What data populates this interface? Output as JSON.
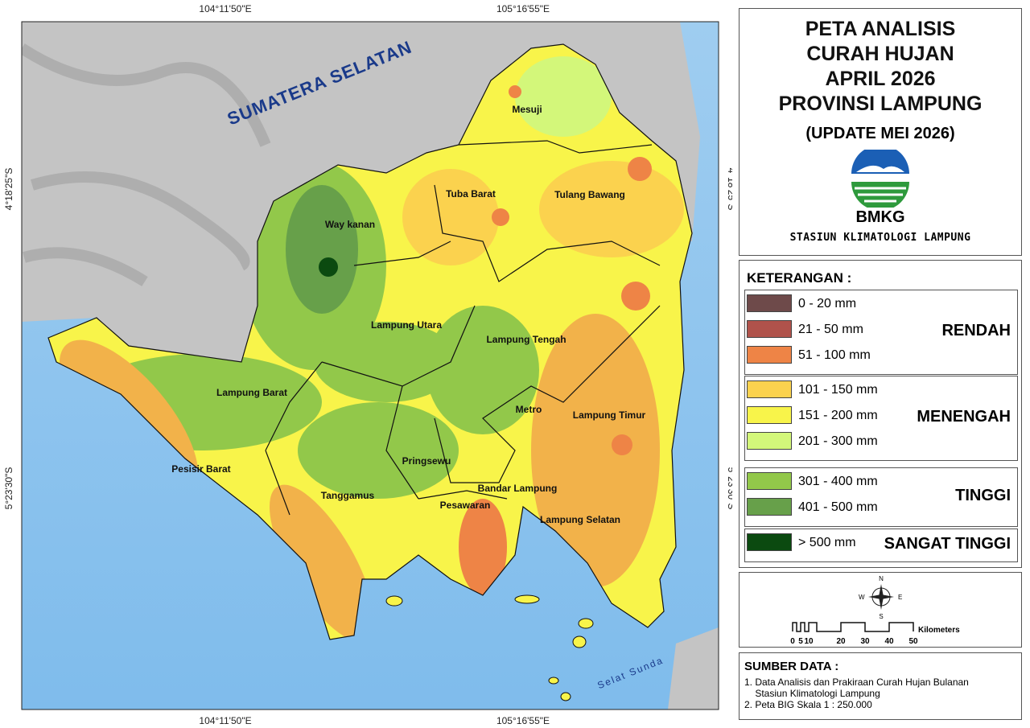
{
  "map": {
    "coords": {
      "lon": [
        "104°11'50\"E",
        "105°16'55\"E"
      ],
      "lat": [
        "4°18'25\"S",
        "5°23'30\"S"
      ]
    },
    "neighbor": "SUMATERA SELATAN",
    "sea": "Selat Sunda",
    "regions": [
      "Mesuji",
      "Tuba Barat",
      "Tulang Bawang",
      "Way kanan",
      "Lampung Utara",
      "Lampung Tengah",
      "Lampung Barat",
      "Metro",
      "Lampung Timur",
      "Pesisir Barat",
      "Pringsewu",
      "Tanggamus",
      "Bandar Lampung",
      "Pesawaran",
      "Lampung Selatan"
    ]
  },
  "header": {
    "title": [
      "PETA ANALISIS",
      "CURAH HUJAN",
      "APRIL 2026",
      "PROVINSI LAMPUNG"
    ],
    "update": "(UPDATE MEI 2026)",
    "agency": "BMKG",
    "station": "STASIUN KLIMATOLOGI LAMPUNG"
  },
  "legend": {
    "heading": "KETERANGAN :",
    "groups": [
      {
        "name": "RENDAH",
        "items": [
          {
            "label": "0 - 20  mm",
            "color": "#6e4a4a"
          },
          {
            "label": "21 - 50  mm",
            "color": "#b0524b"
          },
          {
            "label": "51 - 100  mm",
            "color": "#ee8446"
          }
        ]
      },
      {
        "name": "MENENGAH",
        "items": [
          {
            "label": "101 - 150  mm",
            "color": "#fbd24e"
          },
          {
            "label": "151 - 200  mm",
            "color": "#f8f44a"
          },
          {
            "label": "201 - 300  mm",
            "color": "#d3f77a"
          }
        ]
      },
      {
        "name": "TINGGI",
        "items": [
          {
            "label": "301 - 400  mm",
            "color": "#92c84a"
          },
          {
            "label": "401 - 500  mm",
            "color": "#67a04a"
          }
        ]
      },
      {
        "name": "SANGAT TINGGI",
        "items": [
          {
            "label": "> 500  mm",
            "color": "#0b4a10"
          }
        ]
      }
    ]
  },
  "scale": {
    "directions": [
      "N",
      "S",
      "E",
      "W"
    ],
    "ticks": [
      "0",
      "5",
      "10",
      "20",
      "30",
      "40",
      "50"
    ],
    "unit": "Kilometers"
  },
  "source": {
    "heading": "SUMBER DATA :",
    "lines": [
      "1. Data Analisis dan Prakiraan Curah Hujan Bulanan",
      "    Stasiun Klimatologi Lampung",
      "2. Peta BIG Skala 1 : 250.000"
    ]
  }
}
